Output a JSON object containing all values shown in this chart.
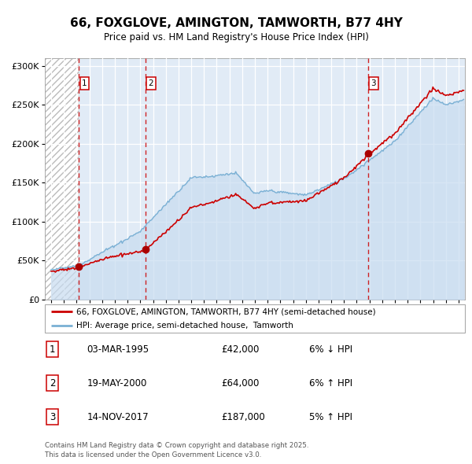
{
  "title": "66, FOXGLOVE, AMINGTON, TAMWORTH, B77 4HY",
  "subtitle": "Price paid vs. HM Land Registry's House Price Index (HPI)",
  "legend_line1": "66, FOXGLOVE, AMINGTON, TAMWORTH, B77 4HY (semi-detached house)",
  "legend_line2": "HPI: Average price, semi-detached house,  Tamworth",
  "footer": "Contains HM Land Registry data © Crown copyright and database right 2025.\nThis data is licensed under the Open Government Licence v3.0.",
  "sales": [
    {
      "num": 1,
      "date": "03-MAR-1995",
      "price": 42000,
      "year": 1995.17,
      "pct": "6% ↓ HPI"
    },
    {
      "num": 2,
      "date": "19-MAY-2000",
      "price": 64000,
      "year": 2000.38,
      "pct": "6% ↑ HPI"
    },
    {
      "num": 3,
      "date": "14-NOV-2017",
      "price": 187000,
      "year": 2017.87,
      "pct": "5% ↑ HPI"
    }
  ],
  "ylim": [
    0,
    310000
  ],
  "yticks": [
    0,
    50000,
    100000,
    150000,
    200000,
    250000,
    300000
  ],
  "ytick_labels": [
    "£0",
    "£50K",
    "£100K",
    "£150K",
    "£200K",
    "£250K",
    "£300K"
  ],
  "xlim_start": 1992.5,
  "xlim_end": 2025.5,
  "xticks": [
    1993,
    1994,
    1995,
    1996,
    1997,
    1998,
    1999,
    2000,
    2001,
    2002,
    2003,
    2004,
    2005,
    2006,
    2007,
    2008,
    2009,
    2010,
    2011,
    2012,
    2013,
    2014,
    2015,
    2016,
    2017,
    2018,
    2019,
    2020,
    2021,
    2022,
    2023,
    2024,
    2025
  ],
  "hpi_fill_color": "#c8dcf0",
  "hpi_line_color": "#7ab0d4",
  "price_color": "#cc0000",
  "sale_marker_color": "#aa0000",
  "dashed_line_color": "#cc0000",
  "hatch_edgecolor": "#bbbbbb"
}
